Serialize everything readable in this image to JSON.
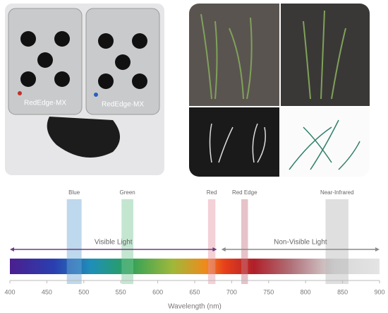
{
  "photos": {
    "camera_labels": [
      "RedEdge·MX",
      "RedEdge·MX"
    ]
  },
  "chart_data": {
    "type": "bands",
    "xlabel": "Wavelength (nm)",
    "xlim": [
      400,
      900
    ],
    "xticks": [
      400,
      450,
      500,
      550,
      600,
      650,
      700,
      750,
      800,
      850,
      900
    ],
    "bands": [
      {
        "name": "Blue",
        "start": 477,
        "end": 497,
        "color": "#6fa8d8"
      },
      {
        "name": "Green",
        "start": 551,
        "end": 567,
        "color": "#7cc79a"
      },
      {
        "name": "Red",
        "start": 668,
        "end": 678,
        "color": "#e79aa6"
      },
      {
        "name": "Red Edge",
        "start": 713,
        "end": 722,
        "color": "#c77b86"
      },
      {
        "name": "Near-Infrared",
        "start": 827,
        "end": 858,
        "color": "#b9b9b9"
      }
    ],
    "ranges": [
      {
        "name": "Visible Light",
        "start": 400,
        "end": 680,
        "color": "#6b3d7d"
      },
      {
        "name": "Non-Visible Light",
        "start": 686,
        "end": 900,
        "color": "#8a8a8a"
      }
    ]
  }
}
